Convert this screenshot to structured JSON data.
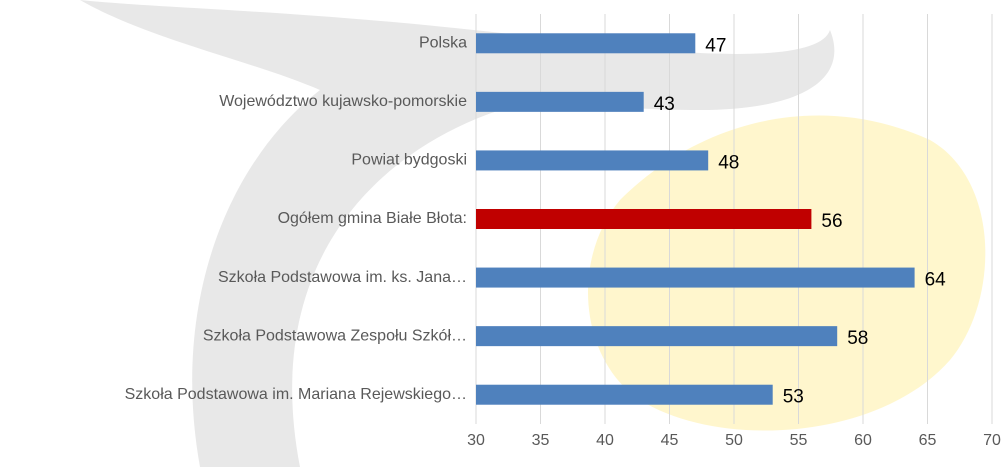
{
  "chart_data": {
    "type": "bar",
    "orientation": "horizontal",
    "categories": [
      "Polska",
      "Województwo kujawsko-pomorskie",
      "Powiat bydgoski",
      "Ogółem gmina Białe Błota:",
      "Szkoła Podstawowa im. ks. Jana…",
      "Szkoła Podstawowa Zespołu Szkół…",
      "Szkoła Podstawowa im. Mariana Rejewskiego…"
    ],
    "values": [
      47,
      43,
      48,
      56,
      64,
      58,
      53
    ],
    "colors": [
      "#4f81bd",
      "#4f81bd",
      "#4f81bd",
      "#c00000",
      "#4f81bd",
      "#4f81bd",
      "#4f81bd"
    ],
    "xlim": [
      30,
      70
    ],
    "xticks": [
      30,
      35,
      40,
      45,
      50,
      55,
      60,
      65,
      70
    ],
    "grid": true
  }
}
